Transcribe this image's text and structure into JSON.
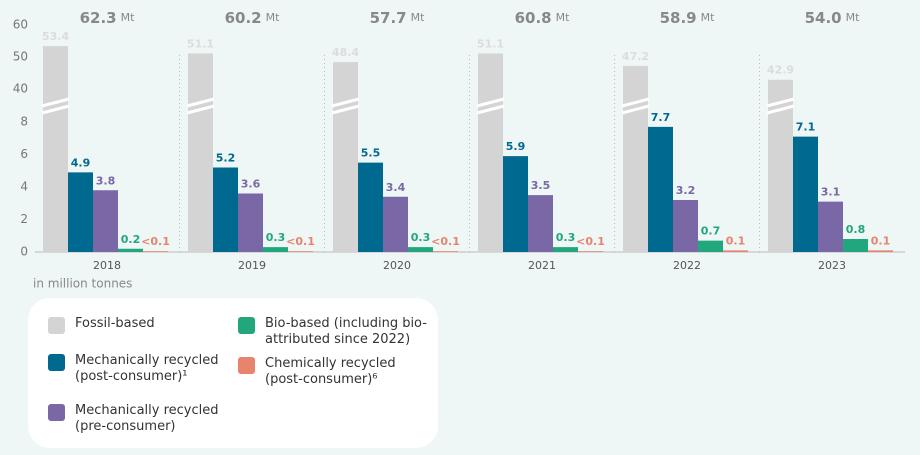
{
  "chart_data": {
    "type": "bar",
    "categories": [
      "2018",
      "2019",
      "2020",
      "2021",
      "2022",
      "2023"
    ],
    "totals": [
      "62.3",
      "60.2",
      "57.7",
      "60.8",
      "58.9",
      "54.0"
    ],
    "totals_unit": "Mt",
    "ylabel": "in million tonnes",
    "ylim": [
      0,
      60
    ],
    "axis_break": [
      8,
      40
    ],
    "yticks": [
      0,
      2,
      4,
      6,
      8,
      40,
      50,
      60
    ],
    "series": [
      {
        "name": "Fossil-based",
        "color": "#d4d4d4",
        "values": [
          53.4,
          51.1,
          48.4,
          51.1,
          47.2,
          42.9
        ]
      },
      {
        "name": "Mechanically recycled (post-consumer)¹",
        "color": "#00698f",
        "values": [
          4.9,
          5.2,
          5.5,
          5.9,
          7.7,
          7.1
        ]
      },
      {
        "name": "Mechanically recycled (pre-consumer)",
        "color": "#7a67a6",
        "values": [
          3.8,
          3.6,
          3.4,
          3.5,
          3.2,
          3.1
        ]
      },
      {
        "name": "Bio-based (including bio-attributed since 2022)",
        "color": "#22a67e",
        "values": [
          0.2,
          0.3,
          0.3,
          0.3,
          0.7,
          0.8
        ]
      },
      {
        "name": "Chemically recycled (post-consumer)⁶",
        "color": "#e8836e",
        "values": [
          0.05,
          0.05,
          0.05,
          0.05,
          0.1,
          0.1
        ],
        "value_labels": [
          "<0.1",
          "<0.1",
          "<0.1",
          "<0.1",
          "0.1",
          "0.1"
        ]
      }
    ]
  }
}
